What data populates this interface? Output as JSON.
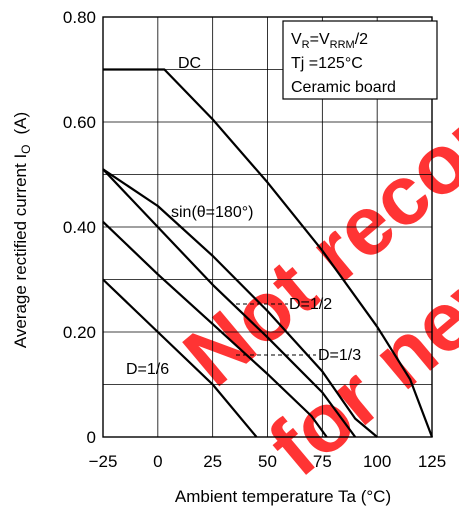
{
  "chart_data": {
    "type": "line",
    "xlabel": "Ambient temperature   Ta   (°C)",
    "ylabel": "Average rectified current   I",
    "ylabel_sub": "O",
    "ylabel_unit": "(A)",
    "xlim": [
      -25,
      125
    ],
    "ylim": [
      0,
      0.8
    ],
    "x_ticks": [
      "−25",
      "0",
      "25",
      "50",
      "75",
      "100",
      "125"
    ],
    "y_ticks": [
      "0",
      "0.20",
      "0.40",
      "0.60",
      "0.80"
    ],
    "grid": true,
    "legend_box": {
      "line1_main": "V",
      "line1_sub1": "R",
      "line1_mid": "=V",
      "line1_sub2": "RRM",
      "line1_end": "/2",
      "line2": "Tj =125°C",
      "line3": "Ceramic board"
    },
    "series": [
      {
        "name": "DC",
        "x": [
          -25,
          3,
          25,
          50,
          75,
          100,
          115,
          125
        ],
        "y": [
          0.7,
          0.7,
          0.605,
          0.485,
          0.355,
          0.21,
          0.11,
          0.0
        ]
      },
      {
        "name": "sin(θ=180°)",
        "x": [
          -25,
          0,
          25,
          50,
          75,
          90,
          100
        ],
        "y": [
          0.51,
          0.44,
          0.345,
          0.24,
          0.125,
          0.035,
          0.0
        ]
      },
      {
        "name": "D=1/2",
        "x": [
          -25,
          0,
          25,
          50,
          75,
          90
        ],
        "y": [
          0.51,
          0.4,
          0.29,
          0.19,
          0.085,
          0.0
        ]
      },
      {
        "name": "D=1/3",
        "x": [
          -25,
          0,
          25,
          50,
          70,
          77
        ],
        "y": [
          0.41,
          0.31,
          0.215,
          0.12,
          0.04,
          0.0
        ]
      },
      {
        "name": "D=1/6",
        "x": [
          -25,
          0,
          25,
          40,
          45
        ],
        "y": [
          0.3,
          0.2,
          0.1,
          0.025,
          0.0
        ]
      }
    ],
    "annotations": [
      {
        "text": "DC",
        "series": "DC"
      },
      {
        "text": "sin(θ=180°)",
        "series": "sin(θ=180°)"
      },
      {
        "text": "D=1/2",
        "series": "D=1/2"
      },
      {
        "text": "D=1/3",
        "series": "D=1/3"
      },
      {
        "text": "D=1/6",
        "series": "D=1/6"
      }
    ],
    "watermark": [
      "Not recommended",
      "for new design"
    ],
    "colors": {
      "curve": "#000000",
      "grid": "#000000",
      "watermark": "#ff2a2a"
    }
  }
}
